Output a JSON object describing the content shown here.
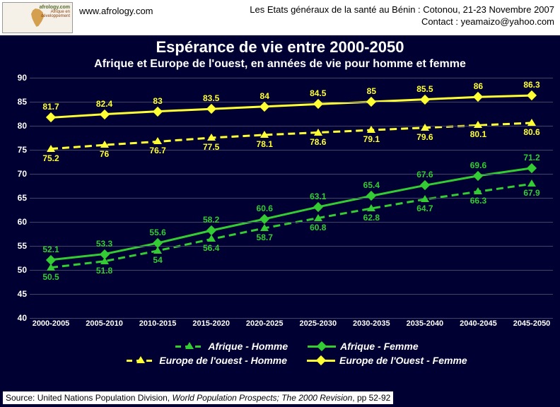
{
  "header": {
    "logo_top": "afrology.com",
    "logo_mid": "Afrique en",
    "logo_bot": "développement",
    "site": "www.afrology.com",
    "event": "Les Etats généraux de la santé au Bénin : Cotonou, 21-23 Novembre 2007",
    "contact": "Contact : yeamaizo@yahoo.com"
  },
  "title": {
    "line1": "Espérance de vie entre 2000-2050",
    "line2": "Afrique et Europe de l'ouest, en années de vie pour homme et femme"
  },
  "chart": {
    "type": "line",
    "background_color": "#000033",
    "grid_color": "#444466",
    "ylim": [
      40,
      90
    ],
    "ytick_step": 5,
    "categories": [
      "2000-2005",
      "2005-2010",
      "2010-2015",
      "2015-2020",
      "2020-2025",
      "2025-2030",
      "2030-2035",
      "2035-2040",
      "2040-2045",
      "2045-2050"
    ],
    "series": [
      {
        "id": "europe_femme",
        "name": "Europe de l'Ouest - Femme",
        "values": [
          81.7,
          82.4,
          83,
          83.5,
          84,
          84.5,
          85,
          85.5,
          86,
          86.3
        ],
        "color": "#ffff33",
        "marker": "diamond",
        "dash": "solid",
        "label_side": "above"
      },
      {
        "id": "europe_homme",
        "name": "Europe de l'ouest - Homme",
        "values": [
          75.2,
          76.0,
          76.7,
          77.5,
          78.1,
          78.6,
          79.1,
          79.6,
          80.1,
          80.6
        ],
        "color": "#ffff33",
        "marker": "triangle",
        "dash": "dashed",
        "label_side": "below"
      },
      {
        "id": "afrique_femme",
        "name": "Afrique - Femme",
        "values": [
          52.1,
          53.3,
          55.6,
          58.2,
          60.6,
          63.1,
          65.4,
          67.6,
          69.6,
          71.2
        ],
        "color": "#33cc33",
        "marker": "diamond",
        "dash": "solid",
        "label_side": "above"
      },
      {
        "id": "afrique_homme",
        "name": "Afrique - Homme",
        "values": [
          50.5,
          51.8,
          54.0,
          56.4,
          58.7,
          60.8,
          62.8,
          64.7,
          66.3,
          67.9
        ],
        "color": "#33cc33",
        "marker": "triangle",
        "dash": "dashed",
        "label_side": "below"
      }
    ],
    "legend_order": [
      "afrique_homme",
      "afrique_femme",
      "europe_homme",
      "europe_femme"
    ],
    "legend_labels": {
      "afrique_homme": "Afrique - Homme",
      "afrique_femme": "Afrique - Femme",
      "europe_homme": "Europe de l'ouest - Homme",
      "europe_femme": "Europe de l'Ouest - Femme"
    }
  },
  "source": {
    "prefix": "Source: United Nations Population Division, ",
    "italic": "World Population Prospects; The 2000 Revision",
    "suffix": ", pp 52-92"
  }
}
